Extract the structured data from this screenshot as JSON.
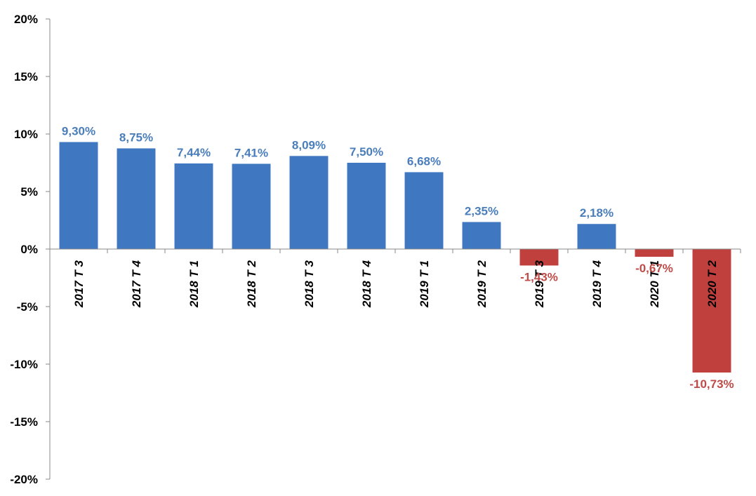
{
  "chart_data": {
    "type": "bar",
    "categories": [
      "2017 T 3",
      "2017 T 4",
      "2018 T 1",
      "2018 T 2",
      "2018 T 3",
      "2018 T 4",
      "2019 T 1",
      "2019 T 2",
      "2019 T 3",
      "2019 T 4",
      "2020 T 1",
      "2020 T 2"
    ],
    "values": [
      9.3,
      8.75,
      7.44,
      7.41,
      8.09,
      7.5,
      6.68,
      2.35,
      -1.43,
      2.18,
      -0.67,
      -10.73
    ],
    "data_labels": [
      "9,30%",
      "8,75%",
      "7,44%",
      "7,41%",
      "8,09%",
      "7,50%",
      "6,68%",
      "2,35%",
      "-1,43%",
      "2,18%",
      "-0,67%",
      "-10,73%"
    ],
    "title": "",
    "xlabel": "",
    "ylabel": "",
    "ylim": [
      -20,
      20
    ],
    "yticks": [
      20,
      15,
      10,
      5,
      0,
      -5,
      -10,
      -15,
      -20
    ],
    "ytick_labels": [
      "20%",
      "15%",
      "10%",
      "5%",
      "0%",
      "-5%",
      "-10%",
      "-15%",
      "-20%"
    ],
    "grid": false,
    "legend": "none",
    "colors": {
      "positive": "#3f78c1",
      "negative": "#c0403e",
      "positive_label": "#4a7ebb",
      "negative_label": "#be4b48",
      "axis": "#888888"
    }
  }
}
